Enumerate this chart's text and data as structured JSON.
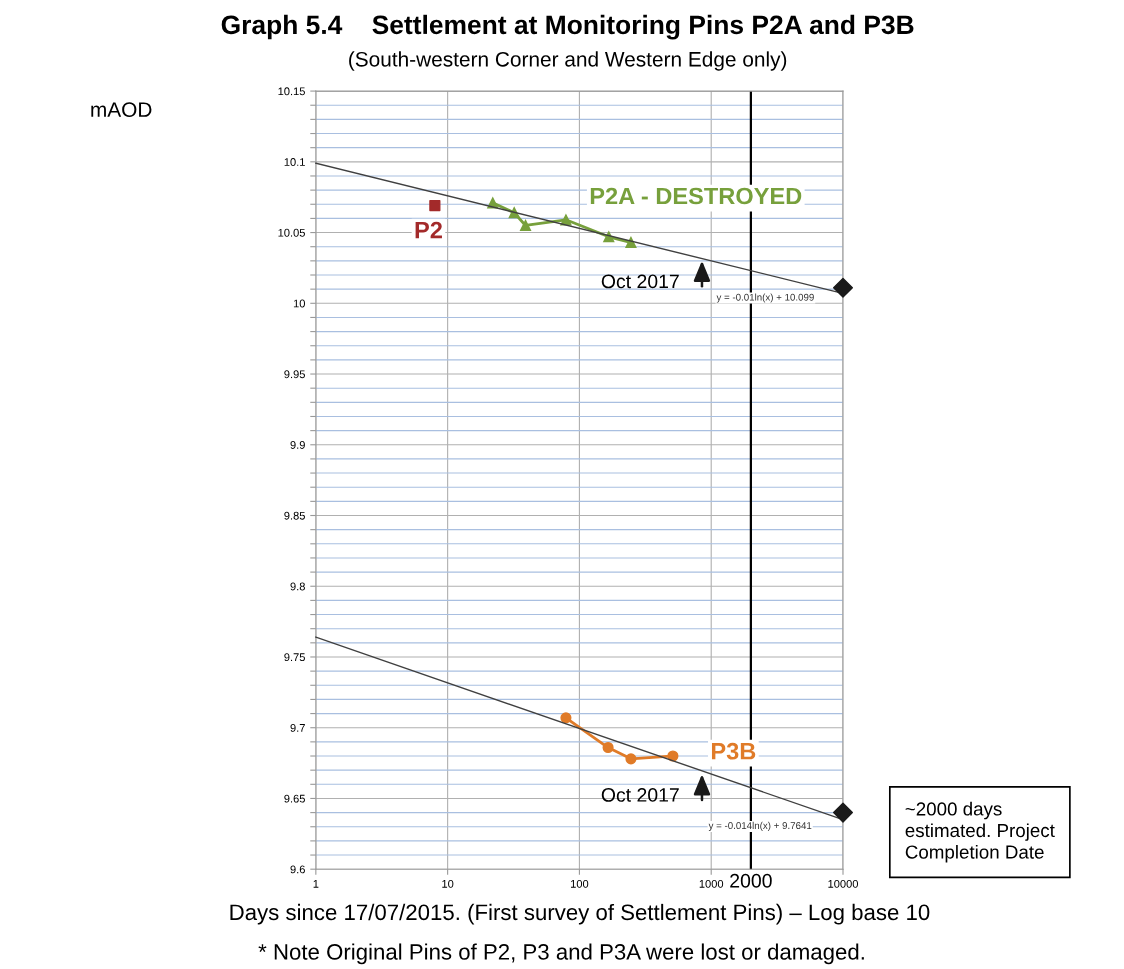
{
  "chart_data": {
    "type": "line",
    "title": "Graph 5.4    Settlement at Monitoring Pins P2A and P3B",
    "subtitle": "(South-western Corner and Western Edge only)",
    "xlabel": "Days since 17/07/2015. (First survey of Settlement Pins) – Log base 10",
    "log": "x",
    "xlim": [
      1,
      10000
    ],
    "xticks": [
      1,
      10,
      100,
      1000,
      10000
    ],
    "ylim": [
      9.6,
      10.15
    ],
    "yticks": [
      9.6,
      {
        "value": 9.61,
        "label": null
      },
      {
        "value": 9.62,
        "label": null
      },
      {
        "value": 9.63,
        "label": null
      },
      {
        "value": 9.64,
        "label": null
      },
      9.65,
      {
        "value": 9.66,
        "label": null
      },
      {
        "value": 9.67,
        "label": null
      },
      {
        "value": 9.68,
        "label": null
      },
      {
        "value": 9.69,
        "label": null
      },
      9.7,
      {
        "value": 9.71,
        "label": null
      },
      {
        "value": 9.72,
        "label": null
      },
      {
        "value": 9.73,
        "label": null
      },
      {
        "value": 9.74,
        "label": null
      },
      9.75,
      {
        "value": 9.76,
        "label": null
      },
      {
        "value": 9.77,
        "label": null
      },
      {
        "value": 9.78,
        "label": null
      },
      {
        "value": 9.79,
        "label": null
      },
      9.8,
      {
        "value": 9.81,
        "label": null
      },
      {
        "value": 9.82,
        "label": null
      },
      {
        "value": 9.83,
        "label": null
      },
      {
        "value": 9.84,
        "label": null
      },
      9.85,
      {
        "value": 9.86,
        "label": null
      },
      {
        "value": 9.87,
        "label": null
      },
      {
        "value": 9.88,
        "label": null
      },
      {
        "value": 9.89,
        "label": null
      },
      9.9,
      {
        "value": 9.91,
        "label": null
      },
      {
        "value": 9.92,
        "label": null
      },
      {
        "value": 9.93,
        "label": null
      },
      {
        "value": 9.94,
        "label": null
      },
      9.95,
      {
        "value": 9.96,
        "label": null
      },
      {
        "value": 9.97,
        "label": null
      },
      {
        "value": 9.98,
        "label": null
      },
      {
        "value": 9.99,
        "label": null
      },
      {
        "value": 10,
        "label": "10"
      },
      {
        "value": 10.01,
        "label": null
      },
      {
        "value": 10.02,
        "label": null
      },
      {
        "value": 10.03,
        "label": null
      },
      {
        "value": 10.04,
        "label": null
      },
      10.05,
      {
        "value": 10.06,
        "label": null
      },
      {
        "value": 10.07,
        "label": null
      },
      {
        "value": 10.08,
        "label": null
      },
      {
        "value": 10.09,
        "label": null
      },
      10.1,
      {
        "value": 10.11,
        "label": null
      },
      {
        "value": 10.12,
        "label": null
      },
      {
        "value": 10.13,
        "label": null
      },
      {
        "value": 10.14,
        "label": null
      },
      10.15
    ],
    "grid": true,
    "legend": false,
    "series": [
      {
        "name": "P2",
        "type": "scatter",
        "marker": "square",
        "color": "#a32a2a",
        "x": [
          8
        ],
        "values": [
          10.069
        ]
      },
      {
        "name": "P2A - DESTROYED",
        "type": "line",
        "marker": "triangle",
        "color": "#77a03c",
        "x": [
          22,
          32,
          39,
          79,
          167,
          246
        ],
        "values": [
          10.071,
          10.064,
          10.055,
          10.059,
          10.047,
          10.043
        ]
      },
      {
        "name": "P3B",
        "type": "line",
        "marker": "circle",
        "color": "#e07b28",
        "x": [
          79,
          165,
          246,
          512
        ],
        "values": [
          9.707,
          9.686,
          9.678,
          9.68
        ]
      },
      {
        "marker": "none",
        "color": "#404040",
        "x": [
          1,
          10000
        ],
        "values": [
          10.099,
          10.007
        ]
      },
      {
        "marker": "none",
        "color": "#404040",
        "x": [
          1,
          10000
        ],
        "values": [
          9.764,
          9.635
        ]
      },
      {
        "type": "scatter",
        "marker": "diamond",
        "color": "#1a1a1a",
        "x": [
          10000,
          10000
        ],
        "values": [
          10.011,
          9.64
        ]
      }
    ],
    "ref_lines": [
      {
        "axis": "x",
        "value": 2000,
        "label": "2000",
        "color": "#000000"
      }
    ],
    "annotations": [
      {
        "text": "Oct 2017",
        "x": 851,
        "y": 10.032
      },
      {
        "text": "Oct 2017",
        "x": 851,
        "y": 9.669
      },
      "y = -0.01ln(x) + 10.099",
      "y = -0.014ln(x) + 9.7641",
      "~2000 days\nestimated. Project\nCompletion Date",
      "* Note Original Pins of P2, P3 and P3A were lost or damaged.",
      "mAOD"
    ]
  }
}
